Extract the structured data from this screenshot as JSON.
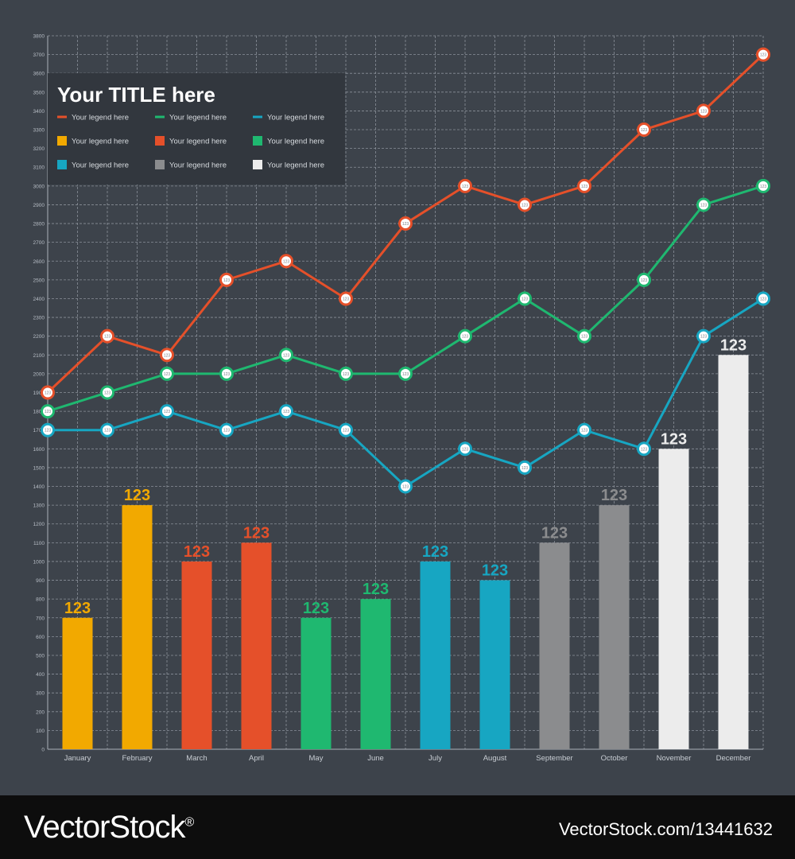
{
  "chart_data": {
    "type": "bar",
    "title": "Your TITLE here",
    "categories": [
      "January",
      "February",
      "March",
      "April",
      "May",
      "June",
      "July",
      "August",
      "September",
      "October",
      "November",
      "December"
    ],
    "bar_values": [
      700,
      1300,
      1000,
      1100,
      700,
      800,
      1000,
      900,
      1100,
      1300,
      1600,
      2100
    ],
    "bar_labels": [
      "123",
      "123",
      "123",
      "123",
      "123",
      "123",
      "123",
      "123",
      "123",
      "123",
      "123",
      "123"
    ],
    "bar_colors": [
      "#f2a900",
      "#f2a900",
      "#e5502a",
      "#e5502a",
      "#1fb870",
      "#1fb870",
      "#17a6c2",
      "#17a6c2",
      "#8b8c8e",
      "#8b8c8e",
      "#ececec",
      "#ececec"
    ],
    "line_series": [
      {
        "color": "#e5502a",
        "values": [
          1900,
          2200,
          2100,
          2500,
          2600,
          2400,
          2800,
          3000,
          2900,
          3000,
          3300,
          3400,
          3700
        ]
      },
      {
        "color": "#1fb870",
        "values": [
          1800,
          1900,
          2000,
          2000,
          2100,
          2000,
          2000,
          2200,
          2400,
          2200,
          2500,
          2900,
          3000
        ]
      },
      {
        "color": "#17a6c2",
        "values": [
          1700,
          1700,
          1800,
          1700,
          1800,
          1700,
          1400,
          1600,
          1500,
          1700,
          1600,
          2200,
          2400
        ]
      }
    ],
    "point_label": "123",
    "ylim": [
      0,
      3800
    ],
    "yticks": [
      0,
      100,
      200,
      300,
      400,
      500,
      600,
      700,
      800,
      900,
      1000,
      1100,
      1200,
      1300,
      1400,
      1500,
      1600,
      1700,
      1800,
      1900,
      2000,
      2100,
      2200,
      2300,
      2400,
      2500,
      2600,
      2700,
      2800,
      2900,
      3000,
      3100,
      3200,
      3300,
      3400,
      3500,
      3600,
      3700,
      3800
    ],
    "grid": true,
    "legend": {
      "position": "top-left",
      "entries": [
        {
          "label": "Your legend here",
          "kind": "line",
          "color": "#e5502a"
        },
        {
          "label": "Your legend here",
          "kind": "line",
          "color": "#1fb870"
        },
        {
          "label": "Your legend here",
          "kind": "line",
          "color": "#17a6c2"
        },
        {
          "label": "Your legend here",
          "kind": "box",
          "color": "#f2a900"
        },
        {
          "label": "Your legend here",
          "kind": "box",
          "color": "#e5502a"
        },
        {
          "label": "Your legend here",
          "kind": "box",
          "color": "#1fb870"
        },
        {
          "label": "Your legend here",
          "kind": "box",
          "color": "#17a6c2"
        },
        {
          "label": "Your legend here",
          "kind": "box",
          "color": "#8b8c8e"
        },
        {
          "label": "Your legend here",
          "kind": "box",
          "color": "#ececec"
        }
      ]
    }
  },
  "footer": {
    "brand": "VectorStock",
    "registered": "®",
    "image_id": "VectorStock.com/13441632"
  },
  "colors": {
    "background": "#3d434b",
    "grid": "#8a9099",
    "legend_panel": "#32373e",
    "footer": "#0d0d0d"
  }
}
